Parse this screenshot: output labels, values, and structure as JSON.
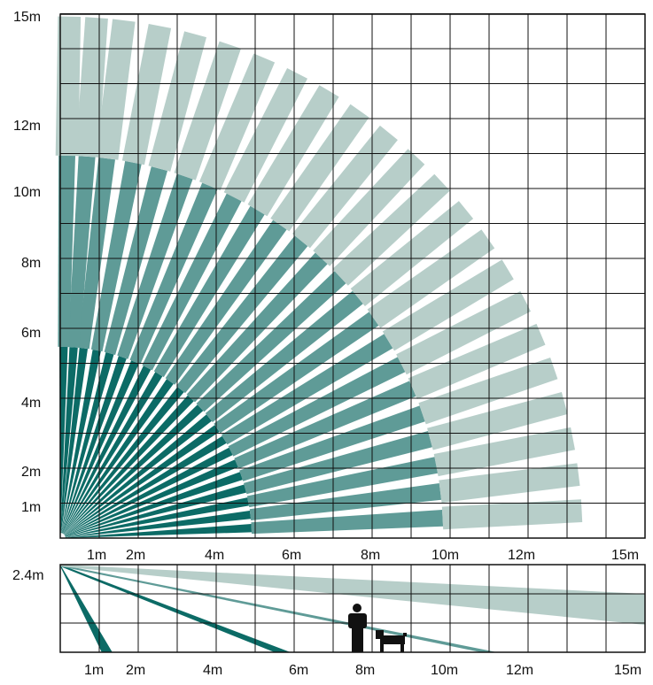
{
  "top_view": {
    "y_labels": [
      "15m",
      "12m",
      "10m",
      "8m",
      "6m",
      "4m",
      "2m",
      "1m"
    ],
    "x_labels": [
      "1m",
      "2m",
      "4m",
      "6m",
      "8m",
      "10m",
      "12m",
      "15m"
    ],
    "beam_angles_deg": [
      3,
      7,
      11,
      15,
      19,
      23,
      27,
      31,
      35,
      39,
      43,
      47,
      51,
      55,
      59,
      63,
      67,
      71,
      75,
      79,
      83,
      86,
      89
    ],
    "near_zone_m": 5.5,
    "mid_zone_m": 11,
    "far_zone_m": 15
  },
  "side_view": {
    "height_label": "2.4m",
    "x_labels": [
      "1m",
      "2m",
      "4m",
      "6m",
      "8m",
      "10m",
      "12m",
      "15m"
    ],
    "beam_ground_hits_m": [
      1.2,
      5.7,
      11,
      15
    ]
  },
  "colors": {
    "near": "#0c6b66",
    "mid": "#5f9b97",
    "far": "#b7cec9",
    "grid": "#111111",
    "figure": "#111111"
  }
}
